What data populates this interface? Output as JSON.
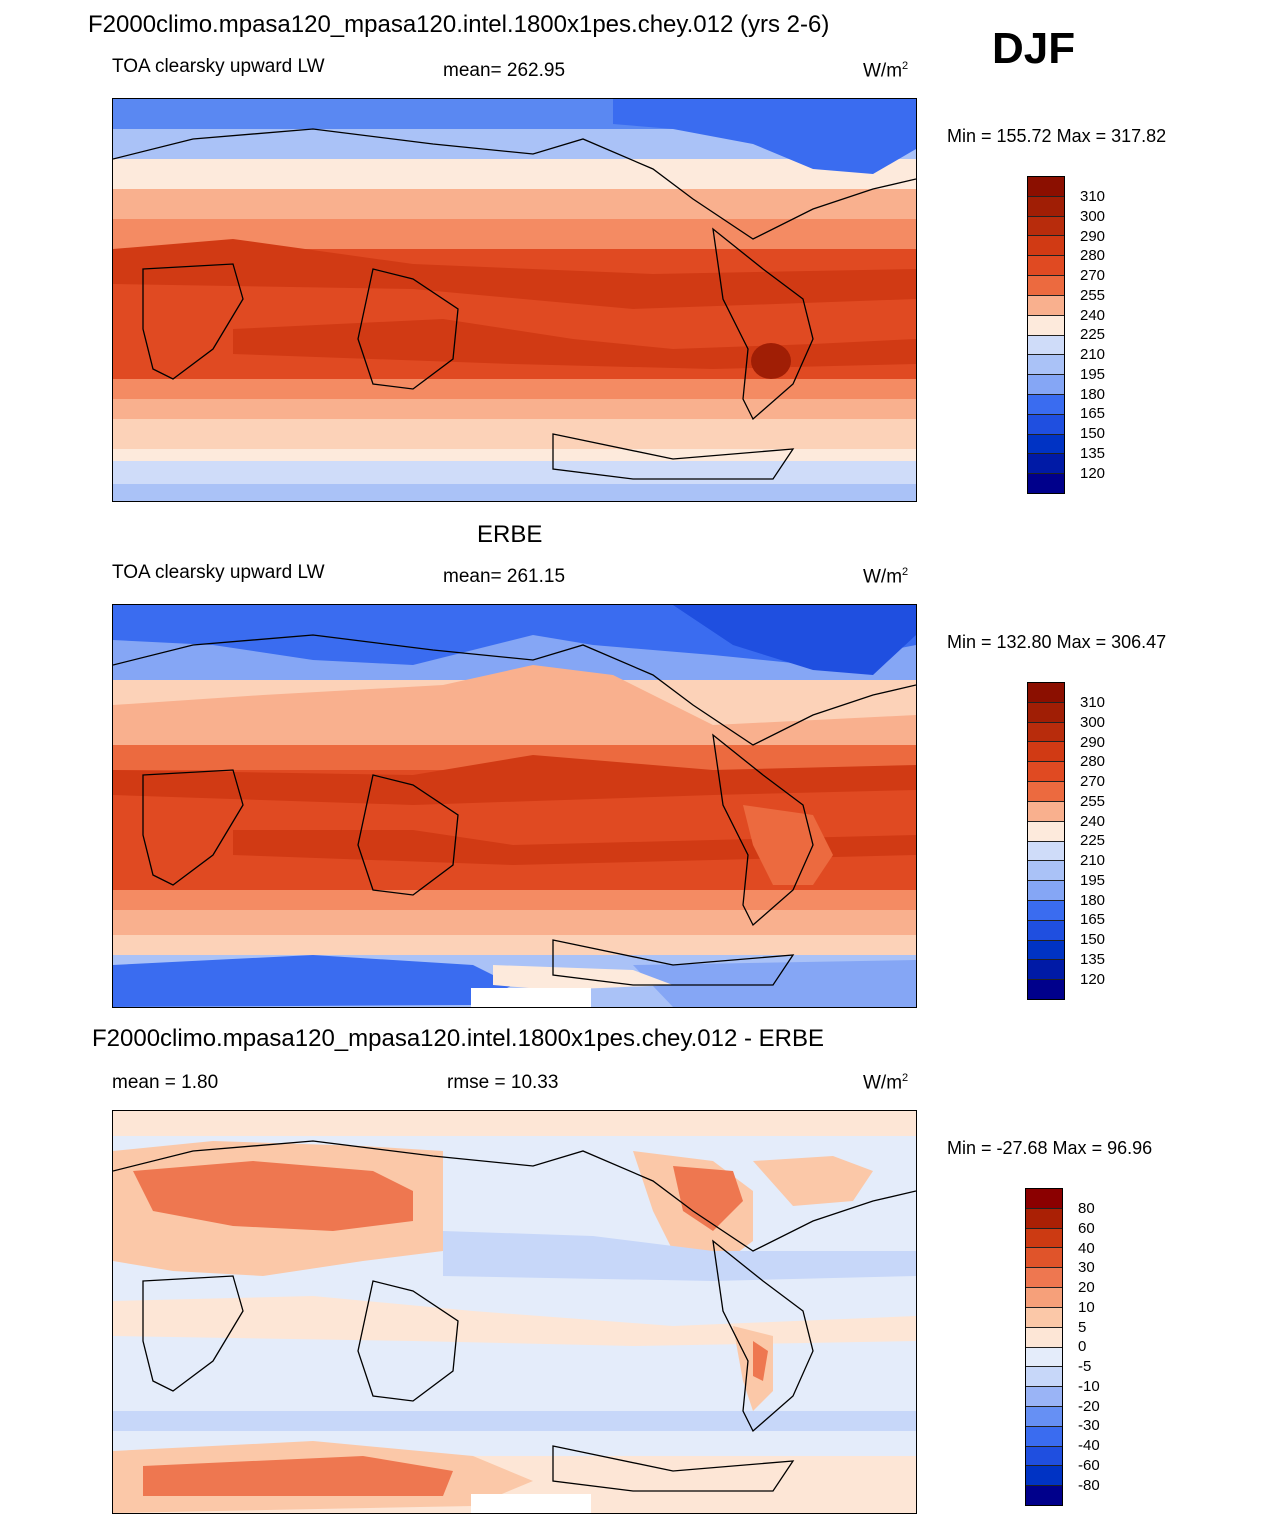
{
  "season": "DJF",
  "title": "F2000climo.mpasa120_mpasa120.intel.1800x1pes.chey.012 (yrs 2-6)",
  "colors": {
    "cool": [
      "#00008b",
      "#001aa6",
      "#0033c4",
      "#1f4fe0",
      "#3a6cf0",
      "#5a88f2",
      "#85a6f5",
      "#aac2f7",
      "#cfdcf9",
      "#e8eefa"
    ],
    "warm": [
      "#fdeadc",
      "#fcd2b8",
      "#f9b08e",
      "#f48b63",
      "#ec6a3f",
      "#e04a22",
      "#d13a14",
      "#b82c0c",
      "#a01e05",
      "#8b0f00"
    ],
    "diff": [
      "#00008b",
      "#001aa6",
      "#0033c4",
      "#1f4fe0",
      "#3a6cf0",
      "#6690f4",
      "#9ab4f6",
      "#c7d7f9",
      "#e4ecfa",
      "#fde6d6",
      "#fbc8a8",
      "#f6a07a",
      "#ee7750",
      "#e0542a",
      "#cc3a12",
      "#aa2005",
      "#8b0000"
    ]
  },
  "panels": [
    {
      "name": "model",
      "header": "",
      "variable": "TOA clearsky upward LW",
      "stat": "mean= 262.95",
      "units_base": "W/m",
      "units_exp": "2",
      "min_max": "Min = 155.72 Max = 317.82",
      "colorbar_labels": [
        "310",
        "300",
        "290",
        "280",
        "270",
        "255",
        "240",
        "225",
        "210",
        "195",
        "180",
        "165",
        "150",
        "135",
        "120"
      ]
    },
    {
      "name": "obs",
      "header": "ERBE",
      "variable": "TOA clearsky upward LW",
      "stat": "mean= 261.15",
      "units_base": "W/m",
      "units_exp": "2",
      "min_max": "Min = 132.80 Max = 306.47",
      "colorbar_labels": [
        "310",
        "300",
        "290",
        "280",
        "270",
        "255",
        "240",
        "225",
        "210",
        "195",
        "180",
        "165",
        "150",
        "135",
        "120"
      ]
    },
    {
      "name": "diff",
      "header": "F2000climo.mpasa120_mpasa120.intel.1800x1pes.chey.012 - ERBE",
      "variable": "mean =   1.80",
      "stat": "rmse =  10.33",
      "units_base": "W/m",
      "units_exp": "2",
      "min_max": "Min = -27.68 Max =  96.96",
      "colorbar_labels": [
        "80",
        "60",
        "40",
        "30",
        "20",
        "10",
        "5",
        "0",
        "-5",
        "-10",
        "-20",
        "-30",
        "-40",
        "-60",
        "-80"
      ]
    }
  ]
}
